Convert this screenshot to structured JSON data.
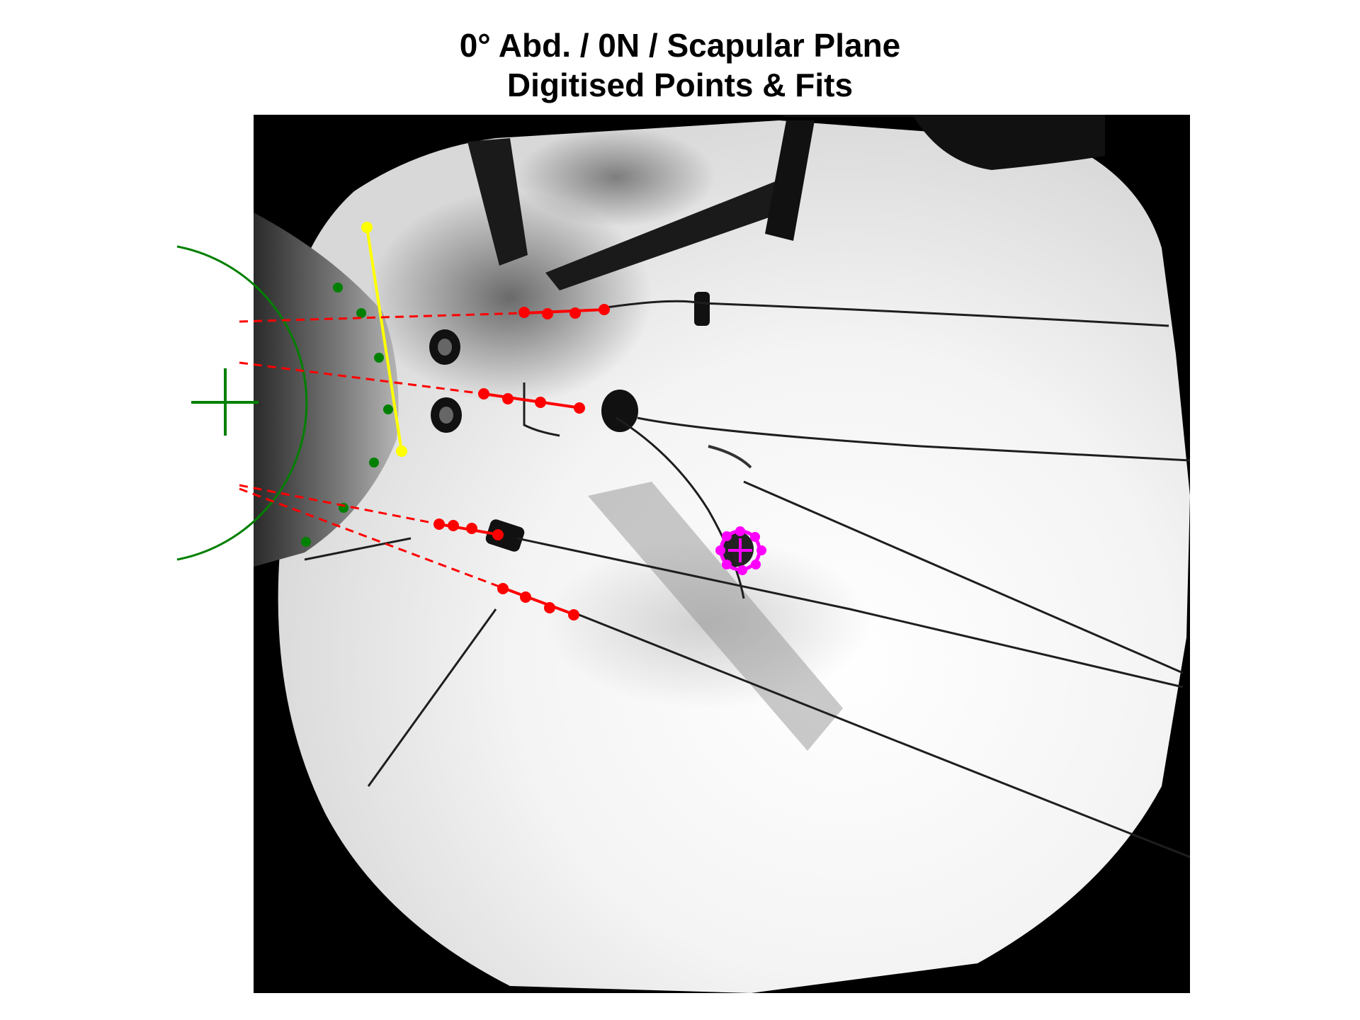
{
  "title": {
    "line1": "0° Abd. / 0N / Scapular Plane",
    "line2": "Digitised Points & Fits"
  },
  "colors": {
    "background": "#ffffff",
    "frame": "#000000",
    "humeral_head_fit": "#008000",
    "glenoid_line": "#ffff00",
    "tendon_fits": "#ff0000",
    "marker_fit": "#ff00ff"
  },
  "overlays": [
    "humeral-head-circle-fit",
    "humeral-head-center-cross",
    "glenoid-rim-line",
    "tendon-fit-lines",
    "bead-marker-fit"
  ]
}
